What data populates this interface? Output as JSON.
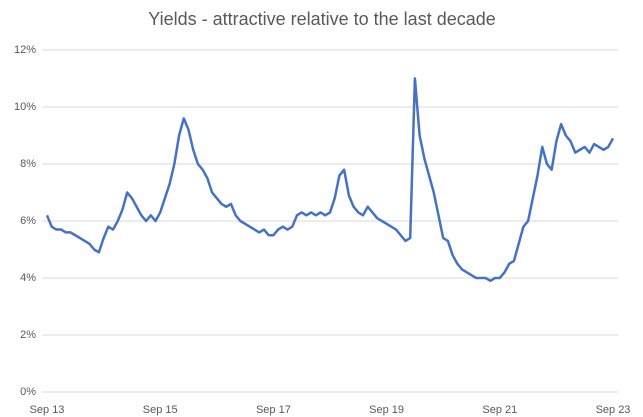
{
  "chart_data": {
    "type": "line",
    "title": "Yields - attractive relative to the last decade",
    "categories": [
      "Sep 13",
      null,
      null,
      null,
      null,
      null,
      null,
      null,
      null,
      null,
      null,
      null,
      null,
      null,
      null,
      null,
      null,
      null,
      null,
      null,
      null,
      null,
      null,
      null,
      "Sep 15",
      null,
      null,
      null,
      null,
      null,
      null,
      null,
      null,
      null,
      null,
      null,
      null,
      null,
      null,
      null,
      null,
      null,
      null,
      null,
      null,
      null,
      null,
      null,
      "Sep 17",
      null,
      null,
      null,
      null,
      null,
      null,
      null,
      null,
      null,
      null,
      null,
      null,
      null,
      null,
      null,
      null,
      null,
      null,
      null,
      null,
      null,
      null,
      null,
      "Sep 19",
      null,
      null,
      null,
      null,
      null,
      null,
      null,
      null,
      null,
      null,
      null,
      null,
      null,
      null,
      null,
      null,
      null,
      null,
      null,
      null,
      null,
      null,
      null,
      "Sep 21",
      null,
      null,
      null,
      null,
      null,
      null,
      null,
      null,
      null,
      null,
      null,
      null,
      null,
      null,
      null,
      null,
      null,
      null,
      null,
      null,
      null,
      null,
      null,
      "Sep 23"
    ],
    "values": [
      6.2,
      5.8,
      5.7,
      5.7,
      5.6,
      5.6,
      5.5,
      5.4,
      5.3,
      5.2,
      5.0,
      4.9,
      5.4,
      5.8,
      5.7,
      6.0,
      6.4,
      7.0,
      6.8,
      6.5,
      6.2,
      6.0,
      6.2,
      6.0,
      6.3,
      6.8,
      7.3,
      8.0,
      9.0,
      9.6,
      9.2,
      8.5,
      8.0,
      7.8,
      7.5,
      7.0,
      6.8,
      6.6,
      6.5,
      6.6,
      6.2,
      6.0,
      5.9,
      5.8,
      5.7,
      5.6,
      5.7,
      5.5,
      5.5,
      5.7,
      5.8,
      5.7,
      5.8,
      6.2,
      6.3,
      6.2,
      6.3,
      6.2,
      6.3,
      6.2,
      6.3,
      6.8,
      7.6,
      7.8,
      6.9,
      6.5,
      6.3,
      6.2,
      6.5,
      6.3,
      6.1,
      6.0,
      5.9,
      5.8,
      5.7,
      5.5,
      5.3,
      5.4,
      11.0,
      9.0,
      8.2,
      7.6,
      7.0,
      6.2,
      5.4,
      5.3,
      4.8,
      4.5,
      4.3,
      4.2,
      4.1,
      4.0,
      4.0,
      4.0,
      3.9,
      4.0,
      4.0,
      4.2,
      4.5,
      4.6,
      5.2,
      5.8,
      6.0,
      6.8,
      7.6,
      8.6,
      8.0,
      7.8,
      8.8,
      9.4,
      9.0,
      8.8,
      8.4,
      8.5,
      8.6,
      8.4,
      8.7,
      8.6,
      8.5,
      8.6,
      8.9
    ],
    "color": "#4472c4",
    "ylim": [
      0,
      12
    ],
    "yticks": [
      {
        "value": 0,
        "label": "0%"
      },
      {
        "value": 2,
        "label": "2%"
      },
      {
        "value": 4,
        "label": "4%"
      },
      {
        "value": 6,
        "label": "6%"
      },
      {
        "value": 8,
        "label": "8%"
      },
      {
        "value": 10,
        "label": "10%"
      },
      {
        "value": 12,
        "label": "12%"
      }
    ],
    "grid": true
  }
}
